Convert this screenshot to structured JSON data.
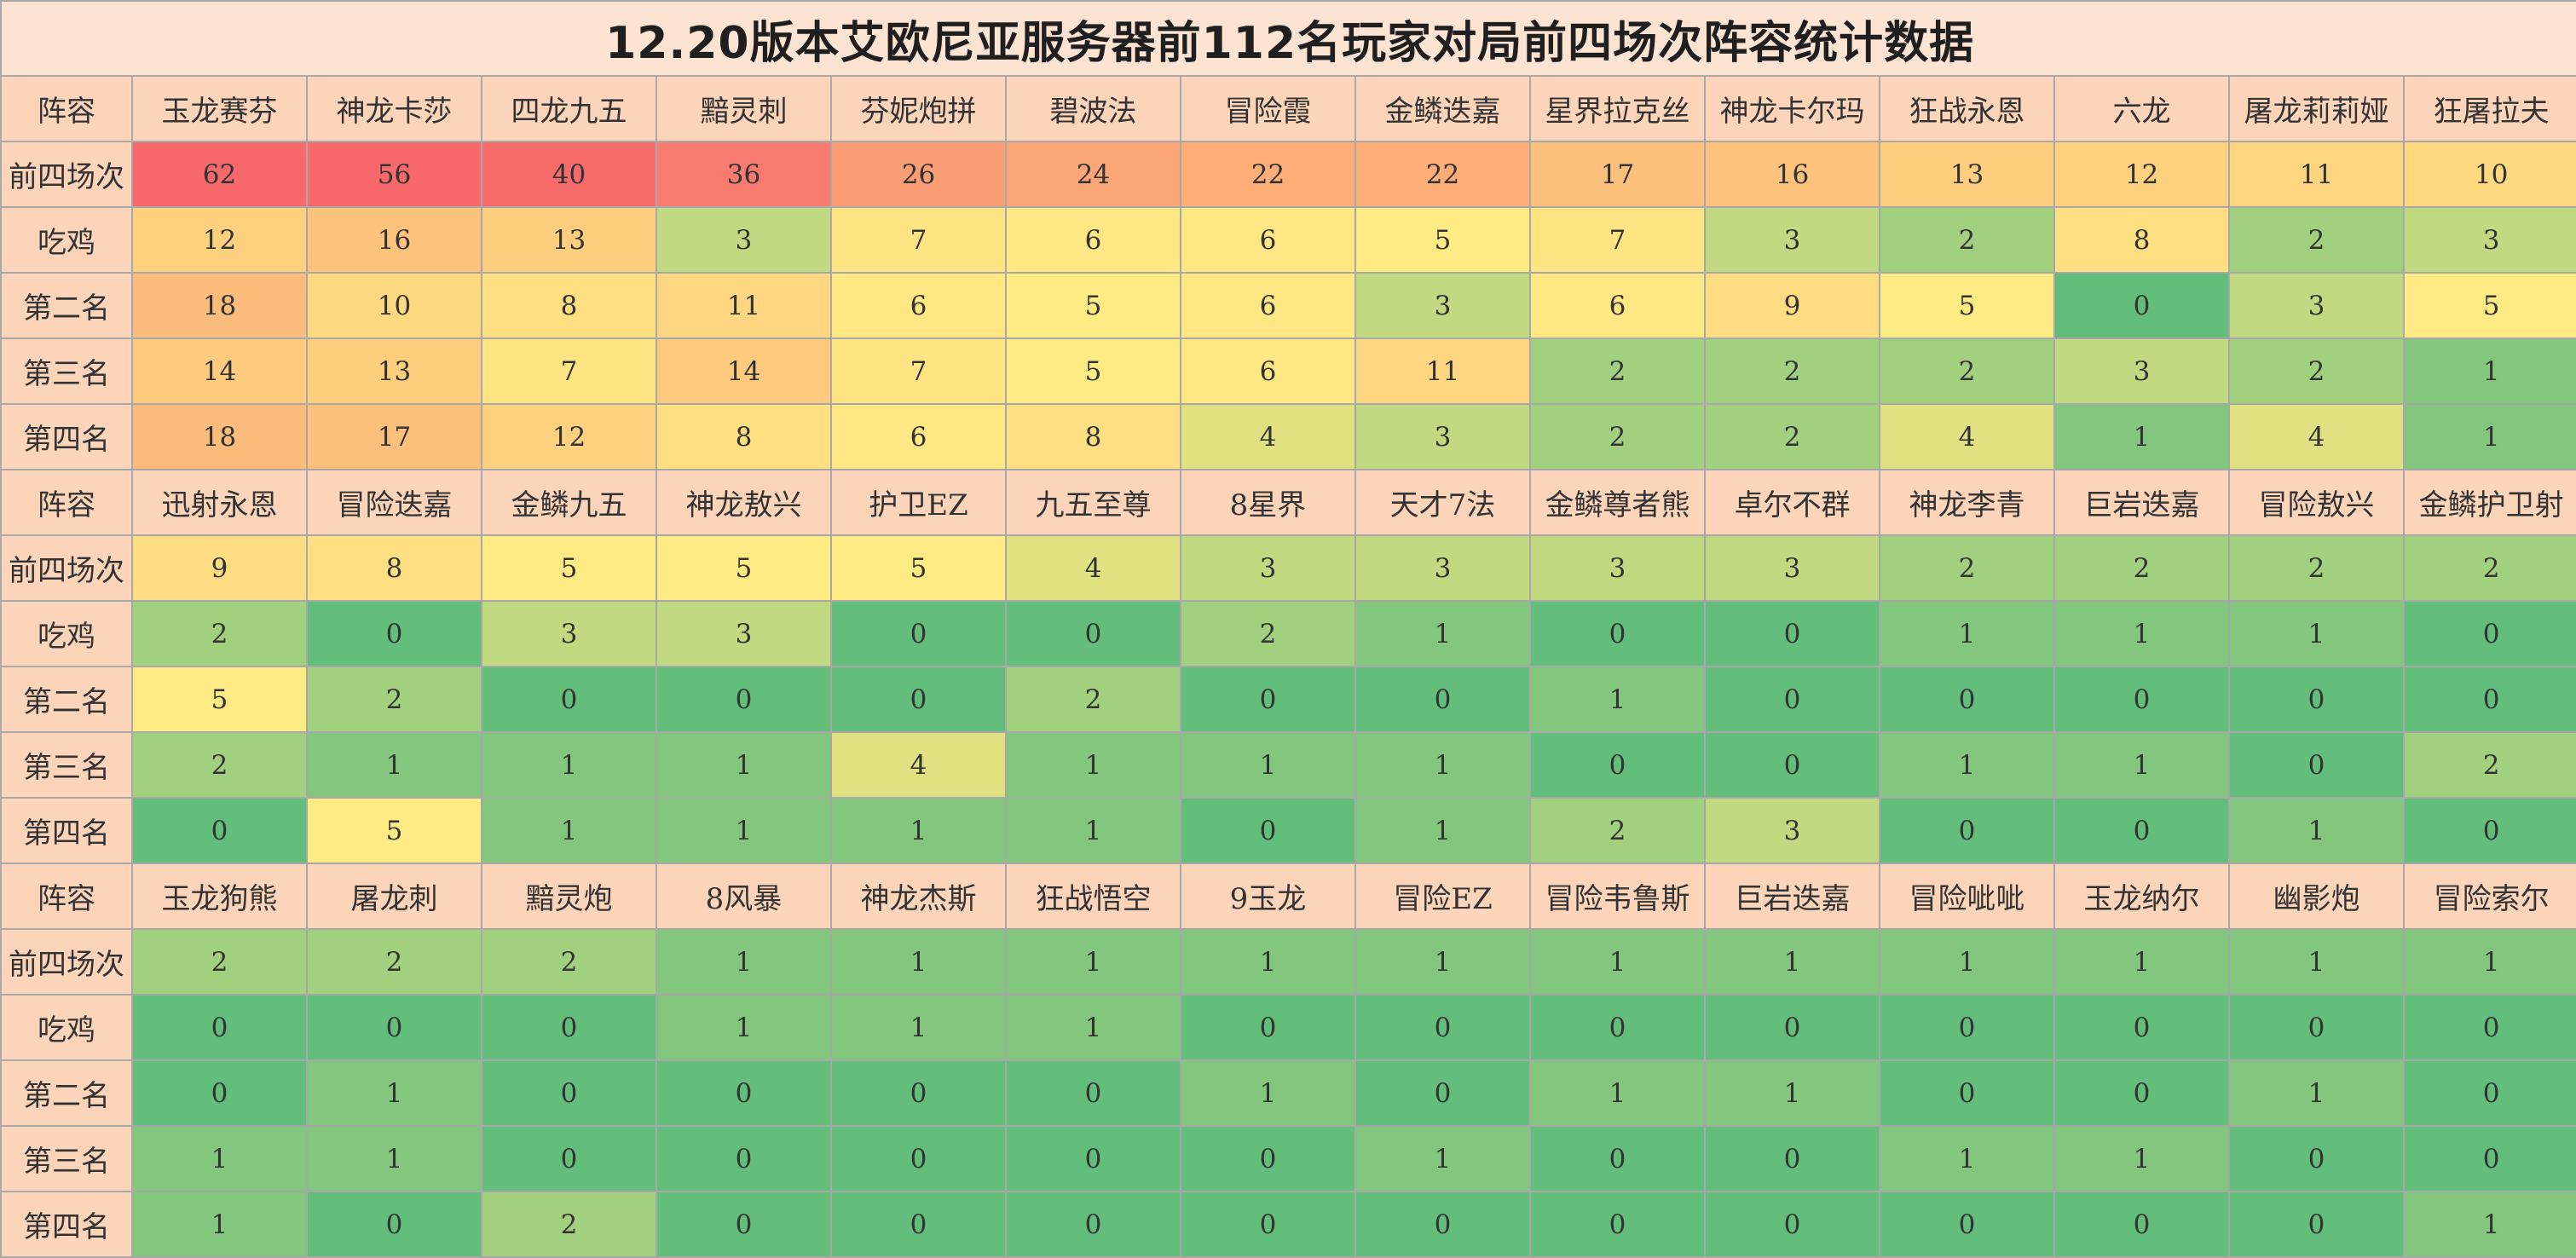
{
  "chart_data": {
    "type": "table",
    "title": "12.20版本艾欧尼亚服务器前112名玩家对局前四场次阵容统计数据",
    "row_header": "阵容",
    "stat_labels": [
      "前四场次",
      "吃鸡",
      "第二名",
      "第三名",
      "第四名"
    ],
    "blocks": [
      {
        "compositions": [
          "玉龙赛芬",
          "神龙卡莎",
          "四龙九五",
          "黯灵刺",
          "芬妮炮拼",
          "碧波法",
          "冒险霞",
          "金鳞迭嘉",
          "星界拉克丝",
          "神龙卡尔玛",
          "狂战永恩",
          "六龙",
          "屠龙莉莉娅",
          "狂屠拉夫"
        ],
        "stats": [
          [
            62,
            56,
            40,
            36,
            26,
            24,
            22,
            22,
            17,
            16,
            13,
            12,
            11,
            10
          ],
          [
            12,
            16,
            13,
            3,
            7,
            6,
            6,
            5,
            7,
            3,
            2,
            8,
            2,
            3
          ],
          [
            18,
            10,
            8,
            11,
            6,
            5,
            6,
            3,
            6,
            9,
            5,
            0,
            3,
            5
          ],
          [
            14,
            13,
            7,
            14,
            7,
            5,
            6,
            11,
            2,
            2,
            2,
            3,
            2,
            1
          ],
          [
            18,
            17,
            12,
            8,
            6,
            8,
            4,
            3,
            2,
            2,
            4,
            1,
            4,
            1
          ]
        ]
      },
      {
        "compositions": [
          "迅射永恩",
          "冒险迭嘉",
          "金鳞九五",
          "神龙敖兴",
          "护卫EZ",
          "九五至尊",
          "8星界",
          "天才7法",
          "金鳞尊者熊",
          "卓尔不群",
          "神龙李青",
          "巨岩迭嘉",
          "冒险敖兴",
          "金鳞护卫射"
        ],
        "stats": [
          [
            9,
            8,
            5,
            5,
            5,
            4,
            3,
            3,
            3,
            3,
            2,
            2,
            2,
            2
          ],
          [
            2,
            0,
            3,
            3,
            0,
            0,
            2,
            1,
            0,
            0,
            1,
            1,
            1,
            0
          ],
          [
            5,
            2,
            0,
            0,
            0,
            2,
            0,
            0,
            1,
            0,
            0,
            0,
            0,
            0
          ],
          [
            2,
            1,
            1,
            1,
            4,
            1,
            1,
            1,
            0,
            0,
            1,
            1,
            0,
            2
          ],
          [
            0,
            5,
            1,
            1,
            1,
            1,
            0,
            1,
            2,
            3,
            0,
            0,
            1,
            0
          ]
        ]
      },
      {
        "compositions": [
          "玉龙狗熊",
          "屠龙刺",
          "黯灵炮",
          "8风暴",
          "神龙杰斯",
          "狂战悟空",
          "9玉龙",
          "冒险EZ",
          "冒险韦鲁斯",
          "巨岩迭嘉",
          "冒险呲呲",
          "玉龙纳尔",
          "幽影炮",
          "冒险索尔"
        ],
        "stats": [
          [
            2,
            2,
            2,
            1,
            1,
            1,
            1,
            1,
            1,
            1,
            1,
            1,
            1,
            1
          ],
          [
            0,
            0,
            0,
            1,
            1,
            1,
            0,
            0,
            0,
            0,
            0,
            0,
            0,
            0
          ],
          [
            0,
            1,
            0,
            0,
            0,
            0,
            1,
            0,
            1,
            1,
            0,
            0,
            1,
            0
          ],
          [
            1,
            1,
            0,
            0,
            0,
            0,
            0,
            1,
            0,
            0,
            1,
            1,
            0,
            0
          ],
          [
            1,
            0,
            2,
            0,
            0,
            0,
            0,
            0,
            0,
            0,
            0,
            0,
            0,
            1
          ]
        ]
      }
    ],
    "color_scale": {
      "min_color": "#63be7b",
      "mid_color": "#ffeb84",
      "max_color": "#f8696b",
      "header_color": "#fcd4b9",
      "title_bg": "#fde4d2"
    }
  }
}
